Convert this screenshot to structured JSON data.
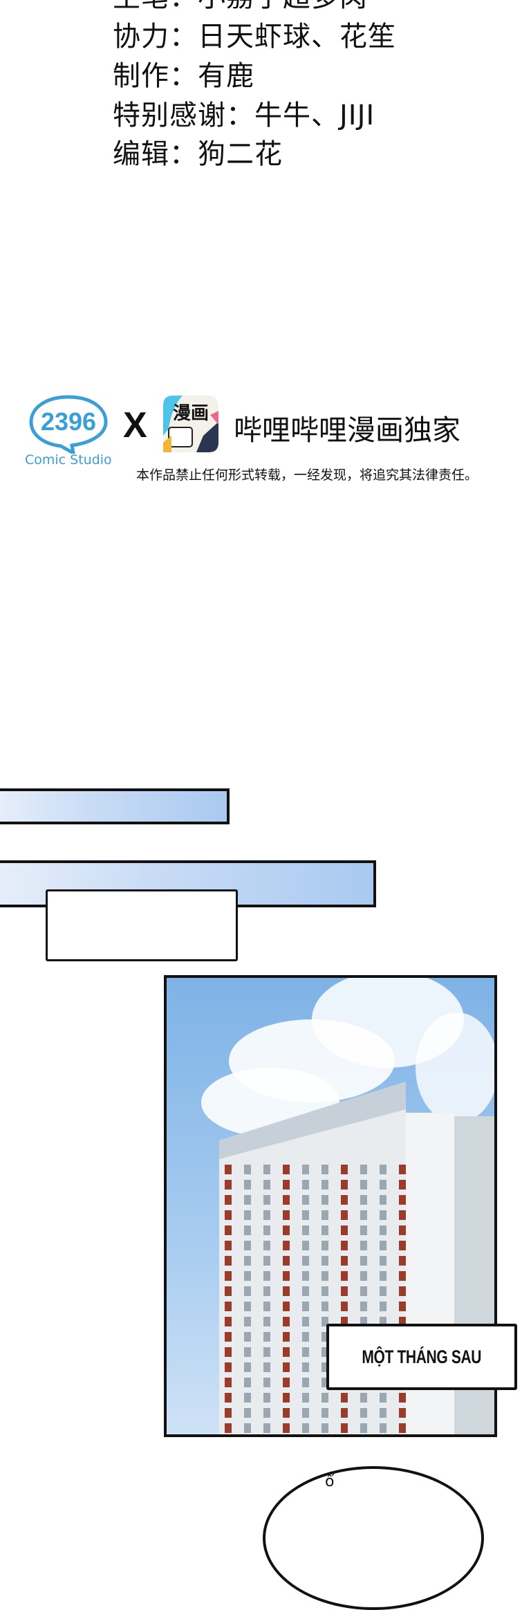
{
  "credits": [
    "主笔：小荔子超多肉",
    "协力：日天虾球、花笙",
    "制作：有鹿",
    "特别感谢：牛牛、JIJI",
    "编辑：狗二花"
  ],
  "logos": {
    "studio_logo_text": "2396",
    "studio_name": "Comic Studio",
    "cross": "X",
    "app_icon_text": "漫画",
    "exclusive": "哔哩哔哩漫画独家",
    "disclaimer": "本作品禁止任何形式转载，一经发现，将追究其法律责任。"
  },
  "colors": {
    "studio_blue": "#3a9fd6",
    "sky_blue": "#a9c9f0",
    "building_brick": "#9b3b2a"
  },
  "comic": {
    "caption": "MỘT THÁNG SAU",
    "bubble_text": "ổ"
  }
}
